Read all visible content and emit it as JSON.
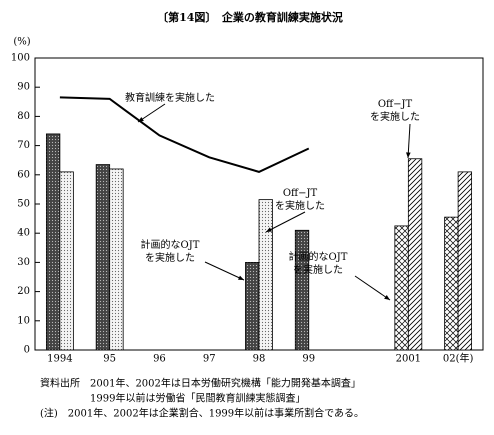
{
  "chart_data": {
    "type": "bar",
    "title": "〔第14図〕　企業の教育訓練実施状況",
    "y_label": "(%)",
    "categories": [
      "1994",
      "95",
      "96",
      "97",
      "98",
      "99",
      null,
      "2001",
      "02(年)"
    ],
    "ylim": [
      0,
      100
    ],
    "yticks": [
      0,
      10,
      20,
      30,
      40,
      50,
      60,
      70,
      80,
      90,
      100
    ],
    "series": [
      {
        "name": "計画的なOJT\nを実施した",
        "color": "#444444",
        "values": [
          74,
          63.5,
          null,
          null,
          30,
          41,
          null,
          null,
          null
        ]
      },
      {
        "name": "Off−JT\nを実施した",
        "color": "#e6e6e6",
        "values": [
          61,
          62,
          null,
          null,
          51.5,
          null,
          null,
          null,
          null
        ]
      },
      {
        "name": "計画的なOJT\nを実施した",
        "color": "#ffffff",
        "values": [
          null,
          null,
          null,
          null,
          null,
          null,
          null,
          42.5,
          45.5
        ]
      },
      {
        "name": "Off−JT\nを実施した",
        "color": "#ffffff",
        "values": [
          null,
          null,
          null,
          null,
          null,
          null,
          null,
          65.5,
          61
        ]
      },
      {
        "name": "教育訓練を実施した",
        "type": "line",
        "color": "#000000",
        "values": [
          86.5,
          86,
          73.5,
          66,
          61,
          69,
          null,
          null,
          null
        ]
      }
    ],
    "notes": [
      "資料出所　2001年、2002年は日本労働研究機構「能力開発基本調査」",
      "1999年以前は労働省「民間教育訓練実態調査」",
      "(注)　2001年、2002年は企業割合、1999年以前は事業所割合である。"
    ]
  }
}
